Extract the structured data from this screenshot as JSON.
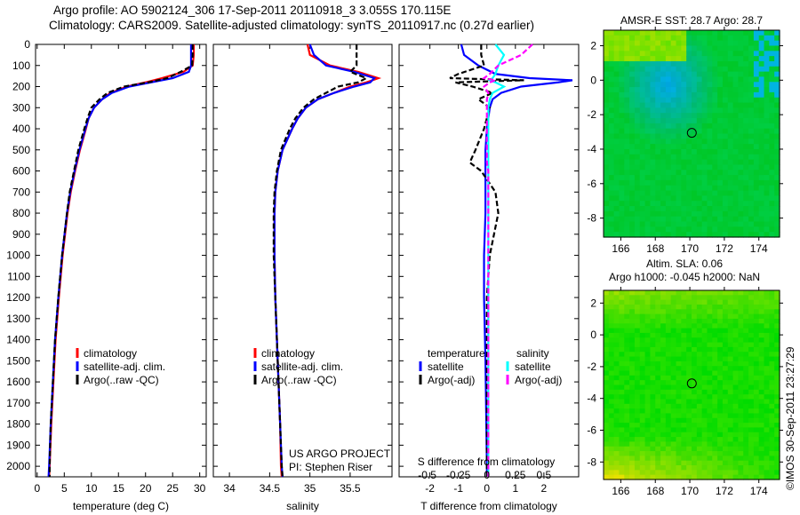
{
  "title_line1": "Argo profile: AO 5902124_306 17-Sep-2011 20110918_3 3.055S 170.115E",
  "title_line2": "Climatology: CARS2009. Satellite-adjusted climatology: synTS_20110917.nc (0.27d earlier)",
  "stamp": "©IMOS 30-Sep-2011 23:27:29",
  "project": "US ARGO PROJECT",
  "pi": "PI: Stephen Riser",
  "colors": {
    "clim": "#ff0000",
    "sat": "#0000ff",
    "argo": "#000000",
    "sal_sat": "#00ffff",
    "sal_argo": "#ff00ff"
  },
  "chart_data": [
    {
      "type": "line",
      "name": "temperature",
      "xlabel": "temperature (deg C)",
      "xlim": [
        -0.3,
        31.2
      ],
      "ylim": [
        2050,
        0
      ],
      "yticks": [
        0,
        100,
        200,
        300,
        400,
        500,
        600,
        700,
        800,
        900,
        1000,
        1100,
        1200,
        1300,
        1400,
        1500,
        1600,
        1700,
        1800,
        1900,
        2000
      ],
      "xticks": [
        0,
        5,
        10,
        15,
        20,
        25,
        30
      ],
      "legend": [
        "climatology",
        "satellite-adj. clim.",
        "Argo(..raw -QC)"
      ],
      "depth": [
        0,
        50,
        100,
        130,
        160,
        180,
        200,
        230,
        260,
        300,
        350,
        400,
        500,
        600,
        700,
        800,
        1000,
        1200,
        1400,
        1600,
        1800,
        2000,
        2050
      ],
      "series": [
        {
          "name": "climatology",
          "values": [
            28.9,
            28.9,
            28.7,
            27,
            23,
            20,
            16.5,
            13.5,
            12,
            10.5,
            9.5,
            9,
            7.9,
            7,
            6.2,
            5.6,
            4.7,
            4,
            3.4,
            3,
            2.6,
            2.3,
            2.2
          ]
        },
        {
          "name": "satellite-adj. clim.",
          "values": [
            28.4,
            28.4,
            28.4,
            28,
            25,
            21,
            17,
            13.8,
            12,
            10.5,
            9.5,
            8.9,
            7.8,
            6.9,
            6.1,
            5.5,
            4.6,
            3.9,
            3.3,
            2.9,
            2.5,
            2.2,
            2.1
          ]
        },
        {
          "name": "Argo(..raw -QC)",
          "values": [
            28.7,
            28.7,
            28.6,
            26.5,
            24,
            20.5,
            16,
            13,
            11.5,
            10,
            9.3,
            8.7,
            7.6,
            6.8,
            6,
            5.5,
            4.6,
            3.9,
            3.3,
            2.9,
            2.5,
            2.3,
            2.3
          ]
        }
      ]
    },
    {
      "type": "line",
      "name": "salinity",
      "xlabel": "salinity",
      "xlim": [
        33.8,
        36.02
      ],
      "ylim": [
        2050,
        0
      ],
      "xticks": [
        34,
        34.5,
        35,
        35.5
      ],
      "legend": [
        "climatology",
        "satellite-adj. clim.",
        "Argo(..raw -QC)"
      ],
      "depth": [
        0,
        50,
        100,
        130,
        160,
        180,
        200,
        230,
        260,
        300,
        350,
        400,
        500,
        600,
        700,
        800,
        1000,
        1200,
        1400,
        1600,
        1800,
        2000,
        2050
      ],
      "series": [
        {
          "name": "climatology",
          "values": [
            34.97,
            35.0,
            35.25,
            35.6,
            35.85,
            35.7,
            35.5,
            35.3,
            35.1,
            34.95,
            34.85,
            34.78,
            34.66,
            34.6,
            34.57,
            34.56,
            34.56,
            34.57,
            34.59,
            34.61,
            34.63,
            34.64,
            34.65
          ]
        },
        {
          "name": "satellite-adj. clim.",
          "values": [
            35.0,
            35.05,
            35.2,
            35.55,
            35.8,
            35.75,
            35.55,
            35.3,
            35.1,
            34.95,
            34.85,
            34.78,
            34.66,
            34.6,
            34.57,
            34.56,
            34.56,
            34.57,
            34.59,
            34.61,
            34.63,
            34.65,
            34.66
          ]
        },
        {
          "name": "Argo(..raw -QC)",
          "values": [
            35.58,
            35.58,
            35.58,
            35.5,
            35.7,
            35.6,
            35.35,
            35.2,
            35.05,
            34.92,
            34.82,
            34.75,
            34.64,
            34.59,
            34.56,
            34.55,
            34.55,
            34.57,
            34.59,
            34.61,
            34.63,
            34.65,
            34.66
          ]
        }
      ]
    },
    {
      "type": "line",
      "name": "difference",
      "xlabel": "T difference from climatology",
      "x2label": "S difference from climatology",
      "xlim": [
        -3.08,
        3.22
      ],
      "ylim": [
        2050,
        0
      ],
      "xticks": [
        -2,
        -1,
        0,
        1,
        2
      ],
      "x2ticks": [
        "-0.5",
        "-0.25",
        "0",
        "0.25",
        "0.5"
      ],
      "legend": {
        "temperature": "temperature",
        "salinity": "salinity",
        "sat": "satellite",
        "argo": "Argo(-adj)"
      },
      "depth": [
        0,
        50,
        100,
        140,
        160,
        170,
        180,
        200,
        230,
        260,
        300,
        400,
        500,
        560,
        600,
        700,
        800,
        1000,
        1200,
        1500,
        2000,
        2050
      ],
      "series": [
        {
          "name": "temperature satellite",
          "values": [
            -0.9,
            -0.8,
            -0.3,
            0.3,
            1.5,
            3,
            2.5,
            1.2,
            0.5,
            0.2,
            0.1,
            0.0,
            -0.05,
            -0.05,
            -0.05,
            -0.05,
            -0.05,
            -0.1,
            -0.1,
            -0.05,
            0,
            0
          ]
        },
        {
          "name": "temperature Argo(-adj)",
          "values": [
            -0.2,
            -0.2,
            -0.1,
            -1,
            -1.3,
            1.3,
            -1.1,
            -0.5,
            0.2,
            -0.3,
            0.1,
            -0.1,
            -0.4,
            -0.6,
            -0.2,
            0.3,
            0.4,
            0.1,
            0.0,
            0.0,
            0.0,
            0.0
          ]
        },
        {
          "name": "salinity satellite",
          "values": [
            0.3,
            0.6,
            0.4,
            0.3,
            0.2,
            0.1,
            0.3,
            0.6,
            0.2,
            0.1,
            0.05,
            0.05,
            0.05,
            0.05,
            0.05,
            0.05,
            0.05,
            0.05,
            0.05,
            0.05,
            0.05,
            0.05
          ]
        },
        {
          "name": "salinity Argo(-adj)",
          "values": [
            1.6,
            1.2,
            0.4,
            0.1,
            -0.1,
            0.3,
            0.1,
            -0.1,
            0.05,
            0.0,
            0.0,
            0.0,
            0.0,
            0.0,
            0.05,
            0.05,
            0.05,
            0.05,
            0.05,
            0.05,
            0.05,
            0.05
          ]
        }
      ]
    },
    {
      "type": "heatmap",
      "name": "sst-map",
      "title": "AMSR-E SST: 28.7  Argo: 28.7",
      "xlim": [
        165,
        175.2
      ],
      "ylim": [
        -9.1,
        2.9
      ],
      "xticks": [
        166,
        168,
        170,
        172,
        174
      ],
      "yticks": [
        2,
        0,
        -2,
        -4,
        -6,
        -8
      ],
      "marker": [
        170.115,
        -3.055
      ]
    },
    {
      "type": "heatmap",
      "name": "sla-map",
      "title1": "Altim. SLA: 0.06",
      "title2": "Argo h1000: -0.045 h2000: NaN",
      "xlim": [
        165,
        175.2
      ],
      "ylim": [
        -9.1,
        2.8
      ],
      "xticks": [
        166,
        168,
        170,
        172,
        174
      ],
      "yticks": [
        2,
        0,
        -2,
        -4,
        -6,
        -8
      ],
      "marker": [
        170.115,
        -3.055
      ]
    }
  ]
}
